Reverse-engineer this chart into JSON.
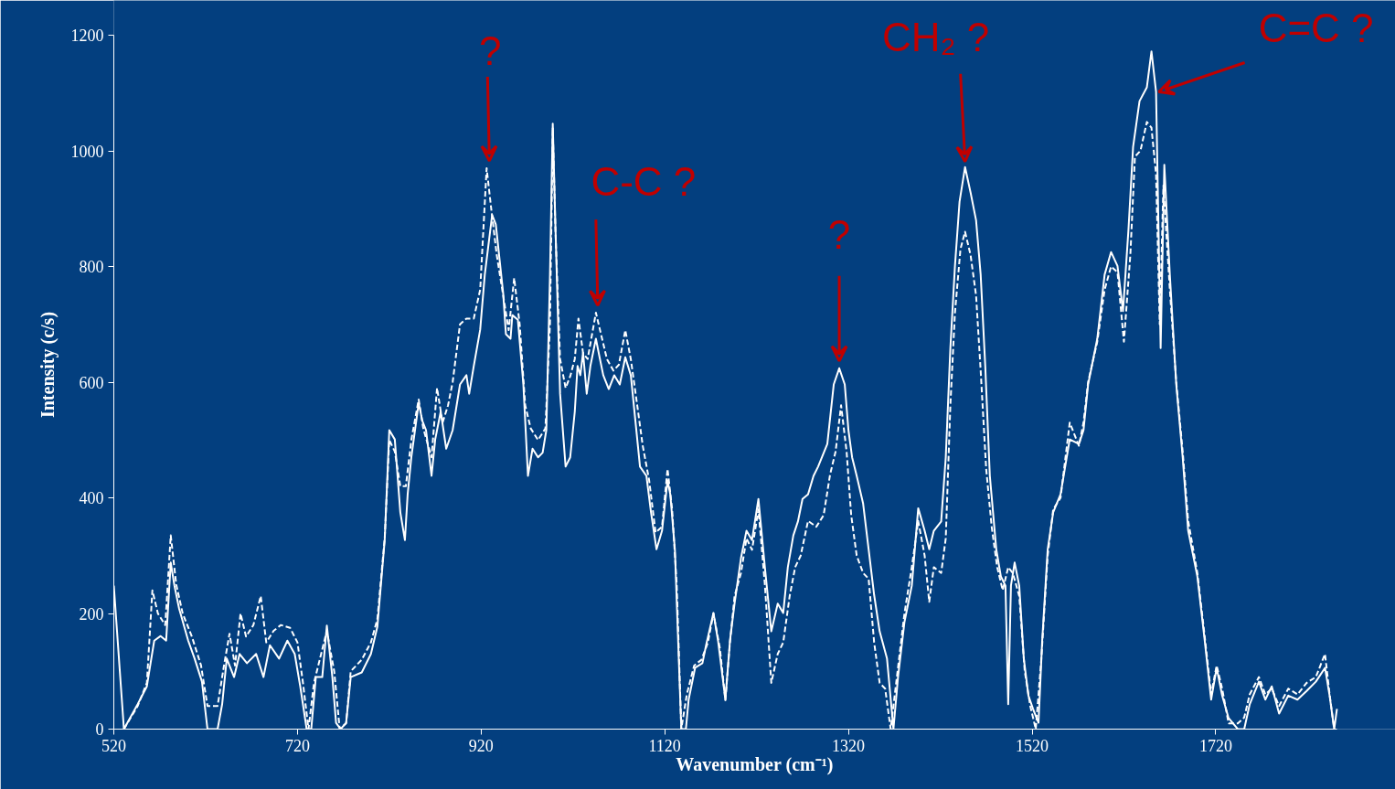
{
  "chart_data": {
    "type": "line",
    "xlabel": "Wavenumber (cm⁻¹)",
    "ylabel": "Intensity (c/s)",
    "xlim": [
      520,
      1852
    ],
    "ylim": [
      0,
      1200
    ],
    "xticks": [
      520,
      720,
      920,
      1120,
      1320,
      1520,
      1720
    ],
    "yticks": [
      0,
      200,
      400,
      600,
      800,
      1000,
      1200
    ],
    "grid": false,
    "series": [
      {
        "color": "#ffffff",
        "line_style": "solid",
        "x": [
          520,
          531,
          546,
          556,
          564,
          571,
          577,
          582,
          586,
          591,
          601,
          608,
          616,
          622,
          633,
          638,
          643,
          651,
          657,
          665,
          675,
          683,
          690,
          700,
          709,
          717,
          723,
          730,
          735,
          740,
          747,
          752,
          758,
          762,
          767,
          773,
          778,
          790,
          800,
          807,
          815,
          820,
          826,
          832,
          837,
          840,
          844,
          852,
          856,
          860,
          866,
          870,
          876,
          882,
          889,
          897,
          904,
          907,
          912,
          919,
          924,
          932,
          936,
          944,
          947,
          952,
          954,
          960,
          966,
          971,
          976,
          982,
          987,
          991,
          995,
          998,
          1001,
          1006,
          1012,
          1017,
          1022,
          1025,
          1028,
          1031,
          1035,
          1039,
          1045,
          1049,
          1053,
          1059,
          1065,
          1071,
          1077,
          1083,
          1088,
          1093,
          1100,
          1105,
          1111,
          1117,
          1123,
          1126,
          1131,
          1138,
          1143,
          1146,
          1153,
          1161,
          1165,
          1173,
          1178,
          1186,
          1191,
          1196,
          1203,
          1209,
          1215,
          1222,
          1229,
          1236,
          1243,
          1249,
          1254,
          1260,
          1265,
          1270,
          1276,
          1282,
          1287,
          1297,
          1304,
          1310,
          1316,
          1320,
          1324,
          1329,
          1336,
          1342,
          1348,
          1354,
          1362,
          1369,
          1374,
          1381,
          1389,
          1396,
          1403,
          1408,
          1413,
          1421,
          1426,
          1431,
          1436,
          1441,
          1447,
          1453,
          1459,
          1464,
          1469,
          1474,
          1481,
          1486,
          1491,
          1494,
          1497,
          1501,
          1506,
          1511,
          1516,
          1521,
          1527,
          1531,
          1537,
          1543,
          1551,
          1561,
          1571,
          1576,
          1581,
          1591,
          1599,
          1606,
          1613,
          1619,
          1625,
          1630,
          1637,
          1645,
          1650,
          1655,
          1660,
          1664,
          1670,
          1677,
          1684,
          1690,
          1700,
          1708,
          1715,
          1721,
          1727,
          1734,
          1744,
          1751,
          1757,
          1767,
          1774,
          1781,
          1789,
          1799,
          1809,
          1819,
          1829,
          1839,
          1844,
          1849,
          1852
        ],
        "values": [
          248,
          0,
          43,
          74,
          153,
          161,
          153,
          288,
          248,
          209,
          153,
          122,
          82,
          0,
          0,
          43,
          122,
          90,
          130,
          114,
          130,
          90,
          145,
          122,
          153,
          130,
          74,
          0,
          0,
          90,
          90,
          179,
          90,
          11,
          0,
          11,
          90,
          98,
          130,
          177,
          327,
          517,
          501,
          375,
          327,
          406,
          470,
          564,
          533,
          517,
          438,
          501,
          549,
          485,
          517,
          596,
          612,
          580,
          628,
          691,
          786,
          889,
          873,
          754,
          683,
          675,
          716,
          708,
          596,
          438,
          485,
          470,
          478,
          517,
          786,
          1047,
          865,
          580,
          454,
          470,
          549,
          628,
          612,
          651,
          580,
          628,
          675,
          643,
          612,
          588,
          612,
          596,
          643,
          612,
          533,
          454,
          438,
          375,
          311,
          343,
          430,
          406,
          311,
          0,
          0,
          51,
          106,
          114,
          145,
          201,
          153,
          51,
          153,
          217,
          296,
          343,
          327,
          398,
          280,
          169,
          217,
          201,
          280,
          335,
          359,
          398,
          406,
          438,
          454,
          493,
          596,
          624,
          596,
          517,
          470,
          438,
          390,
          311,
          232,
          169,
          122,
          0,
          90,
          185,
          248,
          382,
          343,
          311,
          343,
          359,
          470,
          659,
          801,
          912,
          972,
          928,
          880,
          786,
          628,
          438,
          311,
          264,
          248,
          43,
          248,
          288,
          248,
          122,
          58,
          35,
          11,
          153,
          311,
          375,
          406,
          501,
          493,
          517,
          596,
          675,
          786,
          825,
          801,
          723,
          865,
          1007,
          1086,
          1110,
          1172,
          1102,
          659,
          976,
          786,
          596,
          470,
          343,
          264,
          153,
          51,
          106,
          58,
          19,
          0,
          0,
          43,
          82,
          51,
          74,
          27,
          58,
          51,
          66,
          82,
          106,
          58,
          0,
          35
        ]
      },
      {
        "color": "#ffffff",
        "line_style": "dashed",
        "x": [
          531,
          546,
          556,
          562,
          568,
          576,
          582,
          588,
          595,
          605,
          615,
          622,
          633,
          640,
          646,
          652,
          658,
          664,
          672,
          680,
          686,
          694,
          702,
          712,
          720,
          726,
          732,
          738,
          745,
          752,
          760,
          766,
          773,
          778,
          790,
          800,
          807,
          815,
          820,
          826,
          832,
          838,
          844,
          852,
          857,
          866,
          872,
          878,
          884,
          889,
          897,
          904,
          912,
          919,
          926,
          931,
          937,
          944,
          950,
          956,
          962,
          968,
          974,
          982,
          990,
          995,
          998,
          1001,
          1006,
          1012,
          1017,
          1022,
          1026,
          1031,
          1036,
          1045,
          1051,
          1057,
          1064,
          1070,
          1077,
          1083,
          1090,
          1096,
          1103,
          1110,
          1117,
          1123,
          1128,
          1133,
          1138,
          1144,
          1152,
          1160,
          1167,
          1173,
          1180,
          1186,
          1191,
          1196,
          1203,
          1209,
          1215,
          1222,
          1229,
          1236,
          1243,
          1249,
          1256,
          1262,
          1268,
          1276,
          1285,
          1293,
          1300,
          1306,
          1312,
          1318,
          1323,
          1329,
          1336,
          1342,
          1348,
          1354,
          1360,
          1366,
          1372,
          1381,
          1389,
          1396,
          1403,
          1408,
          1413,
          1421,
          1426,
          1431,
          1436,
          1442,
          1447,
          1453,
          1459,
          1464,
          1470,
          1476,
          1482,
          1488,
          1494,
          1499,
          1506,
          1512,
          1518,
          1524,
          1530,
          1537,
          1543,
          1551,
          1561,
          1571,
          1576,
          1581,
          1591,
          1599,
          1606,
          1613,
          1620,
          1627,
          1632,
          1638,
          1645,
          1650,
          1655,
          1659,
          1663,
          1670,
          1677,
          1684,
          1690,
          1700,
          1708,
          1715,
          1721,
          1727,
          1734,
          1744,
          1751,
          1757,
          1767,
          1774,
          1781,
          1789,
          1799,
          1809,
          1819,
          1829,
          1839,
          1844,
          1849
        ],
        "values": [
          0,
          40,
          80,
          240,
          200,
          180,
          335,
          250,
          200,
          160,
          110,
          40,
          40,
          110,
          165,
          110,
          200,
          160,
          180,
          230,
          150,
          170,
          180,
          175,
          150,
          80,
          0,
          80,
          125,
          170,
          100,
          0,
          10,
          100,
          120,
          150,
          190,
          330,
          500,
          480,
          420,
          420,
          500,
          570,
          520,
          470,
          590,
          530,
          560,
          600,
          700,
          710,
          710,
          760,
          970,
          900,
          820,
          750,
          690,
          780,
          700,
          560,
          520,
          500,
          520,
          700,
          1040,
          860,
          640,
          590,
          610,
          640,
          710,
          650,
          640,
          720,
          680,
          640,
          620,
          630,
          690,
          640,
          560,
          490,
          430,
          340,
          350,
          450,
          380,
          250,
          0,
          60,
          110,
          120,
          150,
          200,
          140,
          50,
          150,
          230,
          270,
          330,
          310,
          380,
          250,
          80,
          130,
          150,
          230,
          280,
          300,
          360,
          350,
          370,
          440,
          480,
          560,
          480,
          370,
          300,
          270,
          260,
          150,
          80,
          70,
          0,
          80,
          200,
          280,
          360,
          300,
          220,
          280,
          270,
          330,
          560,
          720,
          830,
          860,
          820,
          750,
          620,
          450,
          350,
          280,
          240,
          280,
          270,
          230,
          100,
          40,
          0,
          120,
          300,
          380,
          400,
          530,
          490,
          530,
          600,
          670,
          760,
          800,
          790,
          670,
          820,
          990,
          1000,
          1050,
          1040,
          960,
          700,
          940,
          760,
          600,
          480,
          360,
          270,
          160,
          60,
          110,
          70,
          10,
          10,
          20,
          60,
          90,
          60,
          70,
          40,
          70,
          60,
          80,
          90,
          130,
          60,
          0
        ]
      }
    ],
    "annotations": [
      {
        "text": "?",
        "x": 926,
        "y": 970
      },
      {
        "text": "C-C ?",
        "x": 1045,
        "y": 720
      },
      {
        "text": "?",
        "x": 1310,
        "y": 624
      },
      {
        "text": "CH₂ ?",
        "x": 1447,
        "y": 972
      },
      {
        "text": "C=C ?",
        "x": 1655,
        "y": 1102
      }
    ]
  }
}
